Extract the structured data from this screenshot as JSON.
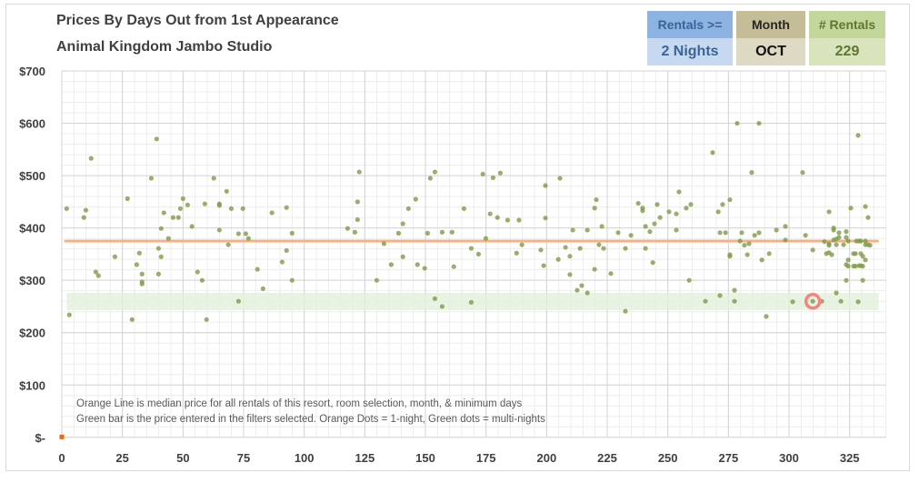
{
  "header": {
    "title": "Prices By Days Out from 1st Appearance",
    "subtitle": "Animal Kingdom Jambo Studio"
  },
  "filters": [
    {
      "label": "Rentals >=",
      "value": "2 Nights"
    },
    {
      "label": "Month",
      "value": "OCT"
    },
    {
      "label": "# Rentals",
      "value": "229"
    }
  ],
  "notes": [
    "Orange Line is median price for all rentals of this resort, room selection, month, & minimum days",
    "Green bar is the price entered in the filters selected. Orange Dots = 1-night, Green dots = multi-nights"
  ],
  "colors": {
    "multi_night": "#7f9a48",
    "one_night": "#e46c0a",
    "median": "#f4b183",
    "band": "#e2efd9",
    "highlight": "#f4847c"
  },
  "chart_data": {
    "type": "scatter",
    "xlabel": "",
    "ylabel": "",
    "xlim": [
      0,
      340
    ],
    "ylim": [
      0,
      700
    ],
    "x_ticks": [
      0,
      25,
      50,
      75,
      100,
      125,
      150,
      175,
      200,
      225,
      250,
      275,
      300,
      325
    ],
    "y_ticks": [
      0,
      100,
      200,
      300,
      400,
      500,
      600,
      700
    ],
    "y_tick_labels": [
      "$-",
      "$100",
      "$200",
      "$300",
      "$400",
      "$500",
      "$600",
      "$700"
    ],
    "grid": true,
    "median_price": 375,
    "price_band": [
      243,
      276
    ],
    "highlight_point": [
      309.8,
      260
    ],
    "series": [
      {
        "name": "1-night",
        "points": [
          [
            0,
            0
          ]
        ]
      },
      {
        "name": "multi-nights",
        "points": [
          [
            2.0,
            437
          ],
          [
            3.1,
            234
          ],
          [
            12.1,
            533
          ],
          [
            9.1,
            420
          ],
          [
            9.9,
            434
          ],
          [
            14.0,
            316
          ],
          [
            15.1,
            309
          ],
          [
            21.9,
            345
          ],
          [
            27.1,
            456
          ],
          [
            29.0,
            225
          ],
          [
            30.9,
            330
          ],
          [
            32.0,
            352
          ],
          [
            33.1,
            312
          ],
          [
            33.1,
            297
          ],
          [
            33.1,
            293
          ],
          [
            36.9,
            495
          ],
          [
            39.1,
            570
          ],
          [
            39.9,
            361
          ],
          [
            39.9,
            312
          ],
          [
            41.0,
            399
          ],
          [
            41.0,
            345
          ],
          [
            42.1,
            429
          ],
          [
            44.0,
            380
          ],
          [
            45.9,
            420
          ],
          [
            48.1,
            420
          ],
          [
            48.9,
            437
          ],
          [
            50.0,
            456
          ],
          [
            51.9,
            444
          ],
          [
            53.7,
            403
          ],
          [
            56.0,
            316
          ],
          [
            57.9,
            300
          ],
          [
            59.0,
            446
          ],
          [
            59.7,
            225
          ],
          [
            62.7,
            495
          ],
          [
            65.0,
            446
          ],
          [
            65.0,
            443
          ],
          [
            65.0,
            396
          ],
          [
            68.0,
            470
          ],
          [
            68.7,
            368
          ],
          [
            69.9,
            437
          ],
          [
            72.9,
            389
          ],
          [
            72.9,
            260
          ],
          [
            74.7,
            437
          ],
          [
            75.9,
            389
          ],
          [
            77.0,
            380
          ],
          [
            80.7,
            321
          ],
          [
            83.0,
            284
          ],
          [
            86.7,
            429
          ],
          [
            90.9,
            335
          ],
          [
            92.7,
            439
          ],
          [
            92.7,
            357
          ],
          [
            95.0,
            390
          ],
          [
            95.0,
            300
          ],
          [
            117.9,
            399
          ],
          [
            120.9,
            392
          ],
          [
            122.0,
            450
          ],
          [
            122.0,
            416
          ],
          [
            122.7,
            507
          ],
          [
            129.9,
            300
          ],
          [
            132.9,
            370
          ],
          [
            135.9,
            330
          ],
          [
            138.9,
            390
          ],
          [
            140.7,
            408
          ],
          [
            140.7,
            345
          ],
          [
            143.0,
            437
          ],
          [
            146.0,
            455
          ],
          [
            146.7,
            330
          ],
          [
            149.7,
            323
          ],
          [
            150.9,
            390
          ],
          [
            152.0,
            495
          ],
          [
            153.9,
            507
          ],
          [
            153.9,
            265
          ],
          [
            156.9,
            392
          ],
          [
            156.9,
            250
          ],
          [
            161.0,
            392
          ],
          [
            161.7,
            326
          ],
          [
            165.9,
            437
          ],
          [
            168.9,
            361
          ],
          [
            168.9,
            258
          ],
          [
            171.9,
            350
          ],
          [
            173.7,
            503
          ],
          [
            174.9,
            380
          ],
          [
            176.7,
            427
          ],
          [
            177.9,
            496
          ],
          [
            179.7,
            420
          ],
          [
            180.9,
            505
          ],
          [
            183.9,
            415
          ],
          [
            187.6,
            352
          ],
          [
            188.6,
            415
          ],
          [
            189.8,
            368
          ],
          [
            197.6,
            358
          ],
          [
            198.8,
            328
          ],
          [
            199.5,
            481
          ],
          [
            199.5,
            419
          ],
          [
            205.5,
            495
          ],
          [
            204.8,
            340
          ],
          [
            207.8,
            363
          ],
          [
            209.6,
            346
          ],
          [
            209.6,
            311
          ],
          [
            210.8,
            396
          ],
          [
            212.6,
            281
          ],
          [
            214.5,
            290
          ],
          [
            213.8,
            361
          ],
          [
            216.8,
            396
          ],
          [
            216.8,
            276
          ],
          [
            219.8,
            438
          ],
          [
            220.5,
            454
          ],
          [
            219.8,
            321
          ],
          [
            221.6,
            368
          ],
          [
            222.8,
            403
          ],
          [
            223.5,
            361
          ],
          [
            226.5,
            313
          ],
          [
            229.5,
            391
          ],
          [
            232.5,
            361
          ],
          [
            232.5,
            241
          ],
          [
            234.8,
            386
          ],
          [
            237.8,
            447
          ],
          [
            239.6,
            438
          ],
          [
            239.6,
            433
          ],
          [
            240.8,
            403
          ],
          [
            240.8,
            361
          ],
          [
            242.6,
            393
          ],
          [
            243.8,
            334
          ],
          [
            244.5,
            408
          ],
          [
            245.6,
            445
          ],
          [
            246.8,
            420
          ],
          [
            250.5,
            431
          ],
          [
            253.5,
            427
          ],
          [
            253.5,
            396
          ],
          [
            254.6,
            469
          ],
          [
            257.6,
            438
          ],
          [
            258.8,
            300
          ],
          [
            259.5,
            445
          ],
          [
            265.5,
            260
          ],
          [
            268.5,
            544
          ],
          [
            270.8,
            431
          ],
          [
            271.5,
            391
          ],
          [
            271.5,
            271
          ],
          [
            272.6,
            445
          ],
          [
            273.8,
            391
          ],
          [
            275.6,
            454
          ],
          [
            275.6,
            349
          ],
          [
            275.6,
            346
          ],
          [
            277.5,
            281
          ],
          [
            277.5,
            260
          ],
          [
            278.6,
            600
          ],
          [
            287.6,
            600
          ],
          [
            284.6,
            506
          ],
          [
            305.6,
            506
          ],
          [
            328.5,
            577
          ],
          [
            280.5,
            391
          ],
          [
            279.8,
            375
          ],
          [
            281.6,
            367
          ],
          [
            283.5,
            370
          ],
          [
            285.8,
            386
          ],
          [
            287.6,
            391
          ],
          [
            282.8,
            349
          ],
          [
            288.8,
            339
          ],
          [
            291.8,
            351
          ],
          [
            294.8,
            396
          ],
          [
            298.5,
            403
          ],
          [
            298.5,
            377
          ],
          [
            306.8,
            386
          ],
          [
            309.8,
            358
          ],
          [
            290.6,
            231
          ],
          [
            301.5,
            259
          ],
          [
            309.8,
            260
          ],
          [
            313.5,
            260
          ],
          [
            314.6,
            374
          ],
          [
            316.5,
            431
          ],
          [
            316.5,
            370
          ],
          [
            316.5,
            367
          ],
          [
            315.4,
            351
          ],
          [
            316.5,
            353
          ],
          [
            317.6,
            349
          ],
          [
            318.4,
            400
          ],
          [
            318.4,
            396
          ],
          [
            318.4,
            377
          ],
          [
            319.5,
            379
          ],
          [
            319.5,
            368
          ],
          [
            320.6,
            391
          ],
          [
            320.6,
            382
          ],
          [
            322.5,
            368
          ],
          [
            323.6,
            393
          ],
          [
            323.6,
            382
          ],
          [
            324.4,
            375
          ],
          [
            324.4,
            339
          ],
          [
            323.6,
            330
          ],
          [
            324.4,
            327
          ],
          [
            323.6,
            300
          ],
          [
            319.5,
            276
          ],
          [
            321.4,
            260
          ],
          [
            325.5,
            438
          ],
          [
            326.6,
            351
          ],
          [
            327.4,
            351
          ],
          [
            326.6,
            327
          ],
          [
            327.4,
            327
          ],
          [
            327.8,
            375
          ],
          [
            328.9,
            375
          ],
          [
            329.6,
            375
          ],
          [
            328.5,
            259
          ],
          [
            329.6,
            351
          ],
          [
            330.4,
            346
          ],
          [
            328.9,
            328
          ],
          [
            329.6,
            328
          ],
          [
            330.4,
            327
          ],
          [
            330.4,
            300
          ],
          [
            331.5,
            441
          ],
          [
            332.6,
            420
          ],
          [
            331.5,
            375
          ],
          [
            331.5,
            368
          ],
          [
            332.6,
            368
          ],
          [
            333.4,
            367
          ],
          [
            331.5,
            339
          ]
        ]
      }
    ]
  }
}
